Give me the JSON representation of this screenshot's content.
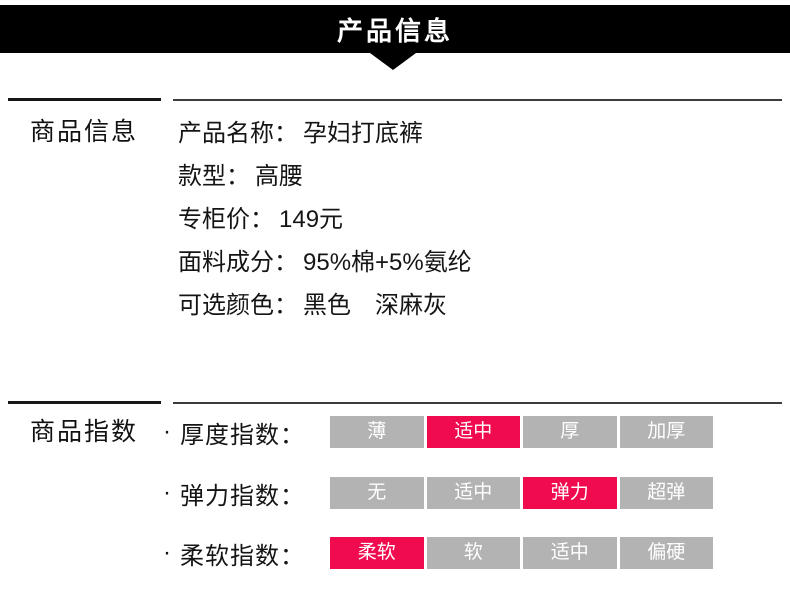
{
  "banner": {
    "title": "产品信息"
  },
  "colors": {
    "banner_bg": "#000000",
    "chip_gray": "#b3b3b3",
    "accent_pink": "#f00a4e",
    "text": "#151515"
  },
  "product_info": {
    "section_label": "商品信息",
    "rows": [
      {
        "label": "产品名称：",
        "value": "孕妇打底裤"
      },
      {
        "label": "款型：",
        "value": "高腰"
      },
      {
        "label": "专柜价：",
        "value": "149元"
      },
      {
        "label": "面料成分：",
        "value": "95%棉+5%氨纶"
      },
      {
        "label": "可选颜色：",
        "value": "黑色　深麻灰"
      }
    ]
  },
  "product_index": {
    "section_label": "商品指数",
    "bullet": "·",
    "rows": [
      {
        "label": "厚度指数：",
        "options": [
          "薄",
          "适中",
          "厚",
          "加厚"
        ],
        "selected": 1
      },
      {
        "label": "弹力指数：",
        "options": [
          "无",
          "适中",
          "弹力",
          "超弹"
        ],
        "selected": 2
      },
      {
        "label": "柔软指数：",
        "options": [
          "柔软",
          "软",
          "适中",
          "偏硬"
        ],
        "selected": 0
      }
    ]
  }
}
